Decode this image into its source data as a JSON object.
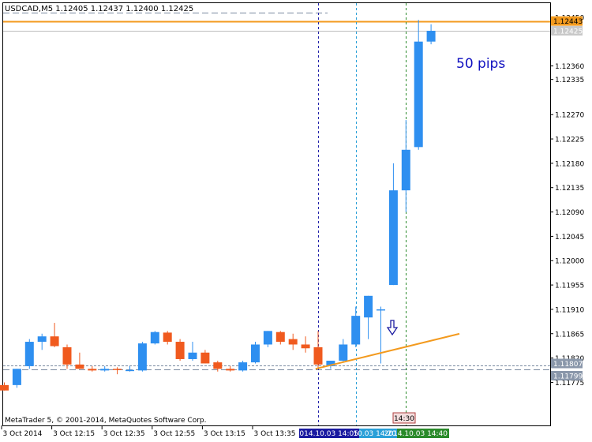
{
  "window": {
    "symbol_line": "USDCAD,M5  1.12405 1.12437 1.12400 1.12425",
    "copyright": "MetaTrader 5, © 2001-2014, MetaQuotes Software Corp."
  },
  "annotations": {
    "pips_text": "50 pips",
    "time_marker": "14:30"
  },
  "colors": {
    "bull": "#2e8ff0",
    "bear": "#f05a1e",
    "trendline": "#f39a1e",
    "vline_blue": "#2222aa",
    "vline_cyan": "#2aa0d8",
    "vline_green": "#2a8a2a",
    "text_blue": "#1010c0",
    "hline_dash": "#7a8aa0"
  },
  "chart_data": {
    "type": "candlestick",
    "title": "",
    "ylim": [
      1.11745,
      1.1246
    ],
    "y_ticks": [
      "1.12450",
      "1.12425",
      "1.12360",
      "1.12335",
      "1.12270",
      "1.12225",
      "1.12180",
      "1.12135",
      "1.12090",
      "1.12045",
      "1.12000",
      "1.11955",
      "1.11910",
      "1.11865",
      "1.11820",
      "1.11797",
      "1.11775"
    ],
    "x_tick_labels": [
      "3 Oct 2014",
      "3 Oct 12:15",
      "3 Oct 12:35",
      "3 Oct 12:55",
      "3 Oct 13:15",
      "3 Oct 13:35"
    ],
    "x_tick_index": [
      0,
      4,
      8,
      12,
      16,
      20
    ],
    "highlight_labels": [
      {
        "text": "2014.10.03 14:05",
        "bg": "#1a1aa0",
        "index": 25
      },
      {
        "text": "10.03 14:20",
        "bg": "#2aa0d8",
        "index": 28
      },
      {
        "text": "2014.10.03 14:40",
        "bg": "#2a8a2a",
        "index": 32
      }
    ],
    "price_labels": [
      {
        "text": "1.12443",
        "value": 1.12443,
        "bg": "#f39a1e",
        "fg": "#000000"
      },
      {
        "text": "1.12425",
        "value": 1.12425,
        "bg": "#c8c8c8",
        "fg": "#ffffff"
      },
      {
        "text": "1.11807",
        "value": 1.11807,
        "bg": "#8a97aa",
        "fg": "#ffffff"
      },
      {
        "text": "1.11799",
        "value": 1.11799,
        "bg": "#8a97aa",
        "fg": "#ffffff"
      }
    ],
    "candles": [
      {
        "o": 1.1177,
        "h": 1.11775,
        "l": 1.1176,
        "c": 1.1176
      },
      {
        "o": 1.1177,
        "h": 1.118,
        "l": 1.11765,
        "c": 1.118
      },
      {
        "o": 1.11805,
        "h": 1.11855,
        "l": 1.118,
        "c": 1.1185
      },
      {
        "o": 1.1185,
        "h": 1.11865,
        "l": 1.11835,
        "c": 1.1186
      },
      {
        "o": 1.1186,
        "h": 1.11885,
        "l": 1.1184,
        "c": 1.11842
      },
      {
        "o": 1.1184,
        "h": 1.11845,
        "l": 1.118,
        "c": 1.11808
      },
      {
        "o": 1.11808,
        "h": 1.1183,
        "l": 1.118,
        "c": 1.118
      },
      {
        "o": 1.118,
        "h": 1.11805,
        "l": 1.11795,
        "c": 1.11797
      },
      {
        "o": 1.11797,
        "h": 1.11805,
        "l": 1.11795,
        "c": 1.118
      },
      {
        "o": 1.118,
        "h": 1.11803,
        "l": 1.1179,
        "c": 1.11798
      },
      {
        "o": 1.11797,
        "h": 1.11805,
        "l": 1.11795,
        "c": 1.11798
      },
      {
        "o": 1.11797,
        "h": 1.1185,
        "l": 1.11795,
        "c": 1.11847
      },
      {
        "o": 1.11847,
        "h": 1.1187,
        "l": 1.11845,
        "c": 1.11868
      },
      {
        "o": 1.11867,
        "h": 1.1187,
        "l": 1.11845,
        "c": 1.1185
      },
      {
        "o": 1.1185,
        "h": 1.11855,
        "l": 1.11815,
        "c": 1.11818
      },
      {
        "o": 1.11818,
        "h": 1.1185,
        "l": 1.11815,
        "c": 1.1183
      },
      {
        "o": 1.1183,
        "h": 1.11835,
        "l": 1.1181,
        "c": 1.1181
      },
      {
        "o": 1.11812,
        "h": 1.11815,
        "l": 1.11795,
        "c": 1.118
      },
      {
        "o": 1.118,
        "h": 1.11805,
        "l": 1.11795,
        "c": 1.11797
      },
      {
        "o": 1.11797,
        "h": 1.11815,
        "l": 1.11795,
        "c": 1.11812
      },
      {
        "o": 1.11812,
        "h": 1.1185,
        "l": 1.1181,
        "c": 1.11845
      },
      {
        "o": 1.11845,
        "h": 1.1187,
        "l": 1.1184,
        "c": 1.1187
      },
      {
        "o": 1.11868,
        "h": 1.1187,
        "l": 1.11845,
        "c": 1.1185
      },
      {
        "o": 1.11855,
        "h": 1.11865,
        "l": 1.11835,
        "c": 1.11845
      },
      {
        "o": 1.11845,
        "h": 1.1186,
        "l": 1.1183,
        "c": 1.11838
      },
      {
        "o": 1.1184,
        "h": 1.1187,
        "l": 1.118,
        "c": 1.11808
      },
      {
        "o": 1.11805,
        "h": 1.11815,
        "l": 1.118,
        "c": 1.11815
      },
      {
        "o": 1.11815,
        "h": 1.11855,
        "l": 1.11812,
        "c": 1.11845
      },
      {
        "o": 1.11845,
        "h": 1.11915,
        "l": 1.1184,
        "c": 1.11898
      },
      {
        "o": 1.11895,
        "h": 1.11935,
        "l": 1.11855,
        "c": 1.11935
      },
      {
        "o": 1.1191,
        "h": 1.11915,
        "l": 1.1181,
        "c": 1.1191
      },
      {
        "o": 1.11955,
        "h": 1.1218,
        "l": 1.11955,
        "c": 1.1213
      },
      {
        "o": 1.1213,
        "h": 1.1226,
        "l": 1.1209,
        "c": 1.12205
      },
      {
        "o": 1.1221,
        "h": 1.12445,
        "l": 1.12205,
        "c": 1.12405
      },
      {
        "o": 1.12405,
        "h": 1.12437,
        "l": 1.124,
        "c": 1.12425
      }
    ],
    "horizontal_lines": [
      1.12443,
      1.12425,
      1.11807,
      1.11799
    ],
    "trendline": {
      "from_index": 24.8,
      "from_price": 1.118,
      "to_index": 35.0,
      "to_price": 1.1184
    },
    "vertical_lines": [
      25,
      28,
      32
    ]
  }
}
